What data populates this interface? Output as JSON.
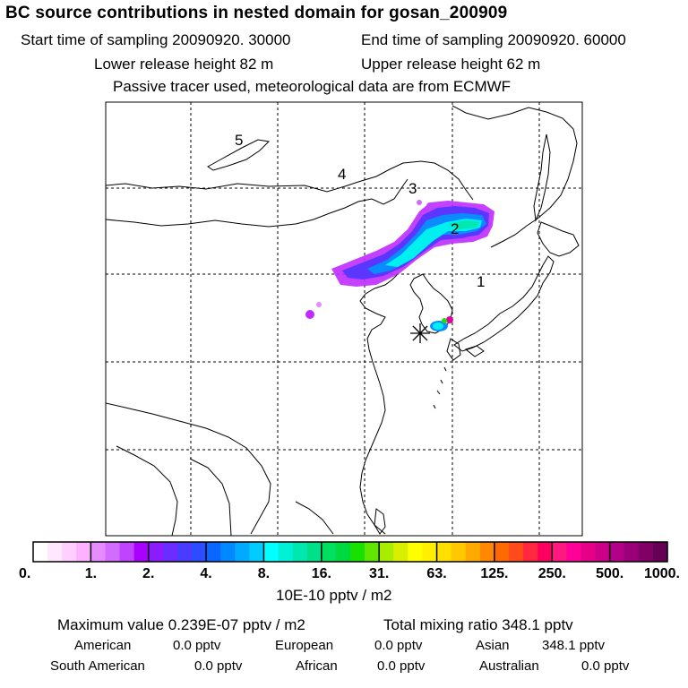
{
  "title": "BC  source contributions in nested domain for gosan_200909",
  "header": {
    "start_label": "Start time of sampling 20090920. 30000",
    "end_label": "End time of sampling 20090920. 60000",
    "lower_release": "Lower release height   82 m",
    "upper_release": "Upper release height   62 m",
    "tracer_note": "Passive tracer used, meteorological data are from ECMWF"
  },
  "map": {
    "region_labels": [
      {
        "id": "5",
        "text": "5"
      },
      {
        "id": "4",
        "text": "4"
      },
      {
        "id": "3",
        "text": "3"
      },
      {
        "id": "2",
        "text": "2"
      },
      {
        "id": "1",
        "text": "1"
      }
    ],
    "receptor_marker": "receptor-star-icon"
  },
  "colorbar": {
    "tick_labels": [
      "0.",
      "1.",
      "2.",
      "4.",
      "8.",
      "16.",
      "31.",
      "63.",
      "125.",
      "250.",
      "500.",
      "1000."
    ],
    "unit": "10E-10 pptv / m2",
    "colors": [
      "#ffffff",
      "#ffe8ff",
      "#ffcfff",
      "#ffb0ff",
      "#e68cff",
      "#d26bff",
      "#bf44ff",
      "#aa00ff",
      "#8a1cff",
      "#6a2cff",
      "#4a3cff",
      "#2c4cff",
      "#0a66ff",
      "#0088ff",
      "#00aaff",
      "#00ccff",
      "#00ffff",
      "#00f0d8",
      "#00e8b0",
      "#00e088",
      "#00e060",
      "#00d840",
      "#18e000",
      "#60e600",
      "#a8ec00",
      "#d8f000",
      "#ffff00",
      "#fff000",
      "#ffe000",
      "#ffc800",
      "#ffaa00",
      "#ff8800",
      "#ff6a00",
      "#ff4c1a",
      "#ff2840",
      "#ff0060",
      "#ff1880",
      "#ff0099",
      "#e60088",
      "#cc0088",
      "#b30088",
      "#990077",
      "#800066",
      "#660055"
    ]
  },
  "summary": {
    "max_value": "Maximum value  0.239E-07 pptv / m2",
    "total_mixing": "Total mixing ratio      348.1 pptv",
    "american_label": "American",
    "american_value": "0.0 pptv",
    "european_label": "European",
    "european_value": "0.0 pptv",
    "asian_label": "Asian",
    "asian_value": "348.1 pptv",
    "south_american_label": "South American",
    "south_american_value": "0.0 pptv",
    "african_label": "African",
    "african_value": "0.0 pptv",
    "australian_label": "Australian",
    "australian_value": "0.0 pptv"
  }
}
